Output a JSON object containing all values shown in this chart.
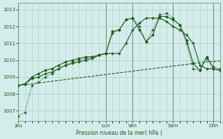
{
  "background_color": "#d4ecea",
  "grid_color": "#b0ccca",
  "line_color": "#1a5c1a",
  "xlabel": "Pression niveau de la mer( hPa )",
  "ylim": [
    1006.4,
    1013.4
  ],
  "yticks": [
    1007,
    1008,
    1009,
    1010,
    1011,
    1012,
    1013
  ],
  "day_labels": [
    "Jeu",
    "Lun",
    "Ven",
    "Sam",
    "Dim"
  ],
  "day_positions": [
    0,
    13,
    17,
    23,
    29
  ],
  "total_points": 31,
  "series1_x": [
    0,
    1,
    2,
    3,
    4,
    5,
    6,
    7,
    8,
    9,
    10,
    11,
    12,
    13,
    14,
    15,
    16,
    17,
    18,
    19,
    20,
    21,
    22,
    23,
    24,
    25,
    26,
    27,
    28,
    29,
    30
  ],
  "series1": [
    1006.7,
    1006.9,
    1008.5,
    1008.7,
    1009.0,
    1009.2,
    1009.5,
    1009.7,
    1009.9,
    1010.0,
    1010.1,
    1010.2,
    1010.3,
    1010.4,
    1011.6,
    1011.8,
    1012.4,
    1012.5,
    1012.0,
    1011.1,
    1011.8,
    1012.7,
    1012.8,
    1012.5,
    1012.1,
    1011.0,
    1009.5,
    1009.4,
    1010.1,
    1009.6,
    1009.5
  ],
  "series2_x": [
    0,
    1,
    2,
    3,
    4,
    5,
    6,
    7,
    8,
    9,
    10,
    11,
    12,
    13,
    14,
    15,
    16,
    17,
    18,
    19,
    20,
    21,
    22,
    23,
    24,
    25,
    26,
    27,
    28,
    29,
    30
  ],
  "series2": [
    1008.5,
    1008.6,
    1009.0,
    1009.2,
    1009.4,
    1009.5,
    1009.7,
    1009.9,
    1010.0,
    1010.1,
    1010.2,
    1010.2,
    1010.3,
    1010.4,
    1011.7,
    1011.8,
    1012.4,
    1012.5,
    1011.8,
    1011.1,
    1011.5,
    1012.6,
    1012.6,
    1012.4,
    1012.1,
    1011.2,
    1009.8,
    1009.4,
    1010.2,
    1009.5,
    1009.4
  ],
  "series3_x": [
    0,
    1,
    2,
    3,
    4,
    5,
    6,
    7,
    8,
    9,
    10,
    11,
    12,
    13,
    14,
    15,
    16,
    17,
    18,
    19,
    20,
    21,
    22,
    23,
    24,
    25,
    26,
    27,
    28,
    29,
    30
  ],
  "series3": [
    1008.5,
    1008.6,
    1008.9,
    1009.0,
    1009.2,
    1009.3,
    1009.5,
    1009.7,
    1009.8,
    1009.9,
    1010.0,
    1010.1,
    1010.3,
    1010.4,
    1010.4,
    1010.4,
    1011.0,
    1011.8,
    1012.2,
    1012.5,
    1012.5,
    1012.5,
    1012.3,
    1012.0,
    1011.8,
    1011.5,
    1011.0,
    1009.7,
    1009.5,
    1009.5,
    1009.4
  ],
  "series4_x": [
    0,
    1,
    2,
    3,
    4,
    5,
    6,
    7,
    8,
    9,
    10,
    11,
    12,
    13,
    14,
    15,
    16,
    17,
    18,
    19,
    20,
    21,
    22,
    23,
    24,
    25,
    26,
    27,
    28,
    29,
    30
  ],
  "series4": [
    1008.5,
    1008.55,
    1008.6,
    1008.65,
    1008.7,
    1008.75,
    1008.8,
    1008.85,
    1008.9,
    1008.95,
    1009.0,
    1009.05,
    1009.1,
    1009.15,
    1009.2,
    1009.25,
    1009.3,
    1009.35,
    1009.4,
    1009.45,
    1009.5,
    1009.55,
    1009.6,
    1009.65,
    1009.7,
    1009.75,
    1009.8,
    1009.85,
    1009.9,
    1009.92,
    1009.95
  ]
}
